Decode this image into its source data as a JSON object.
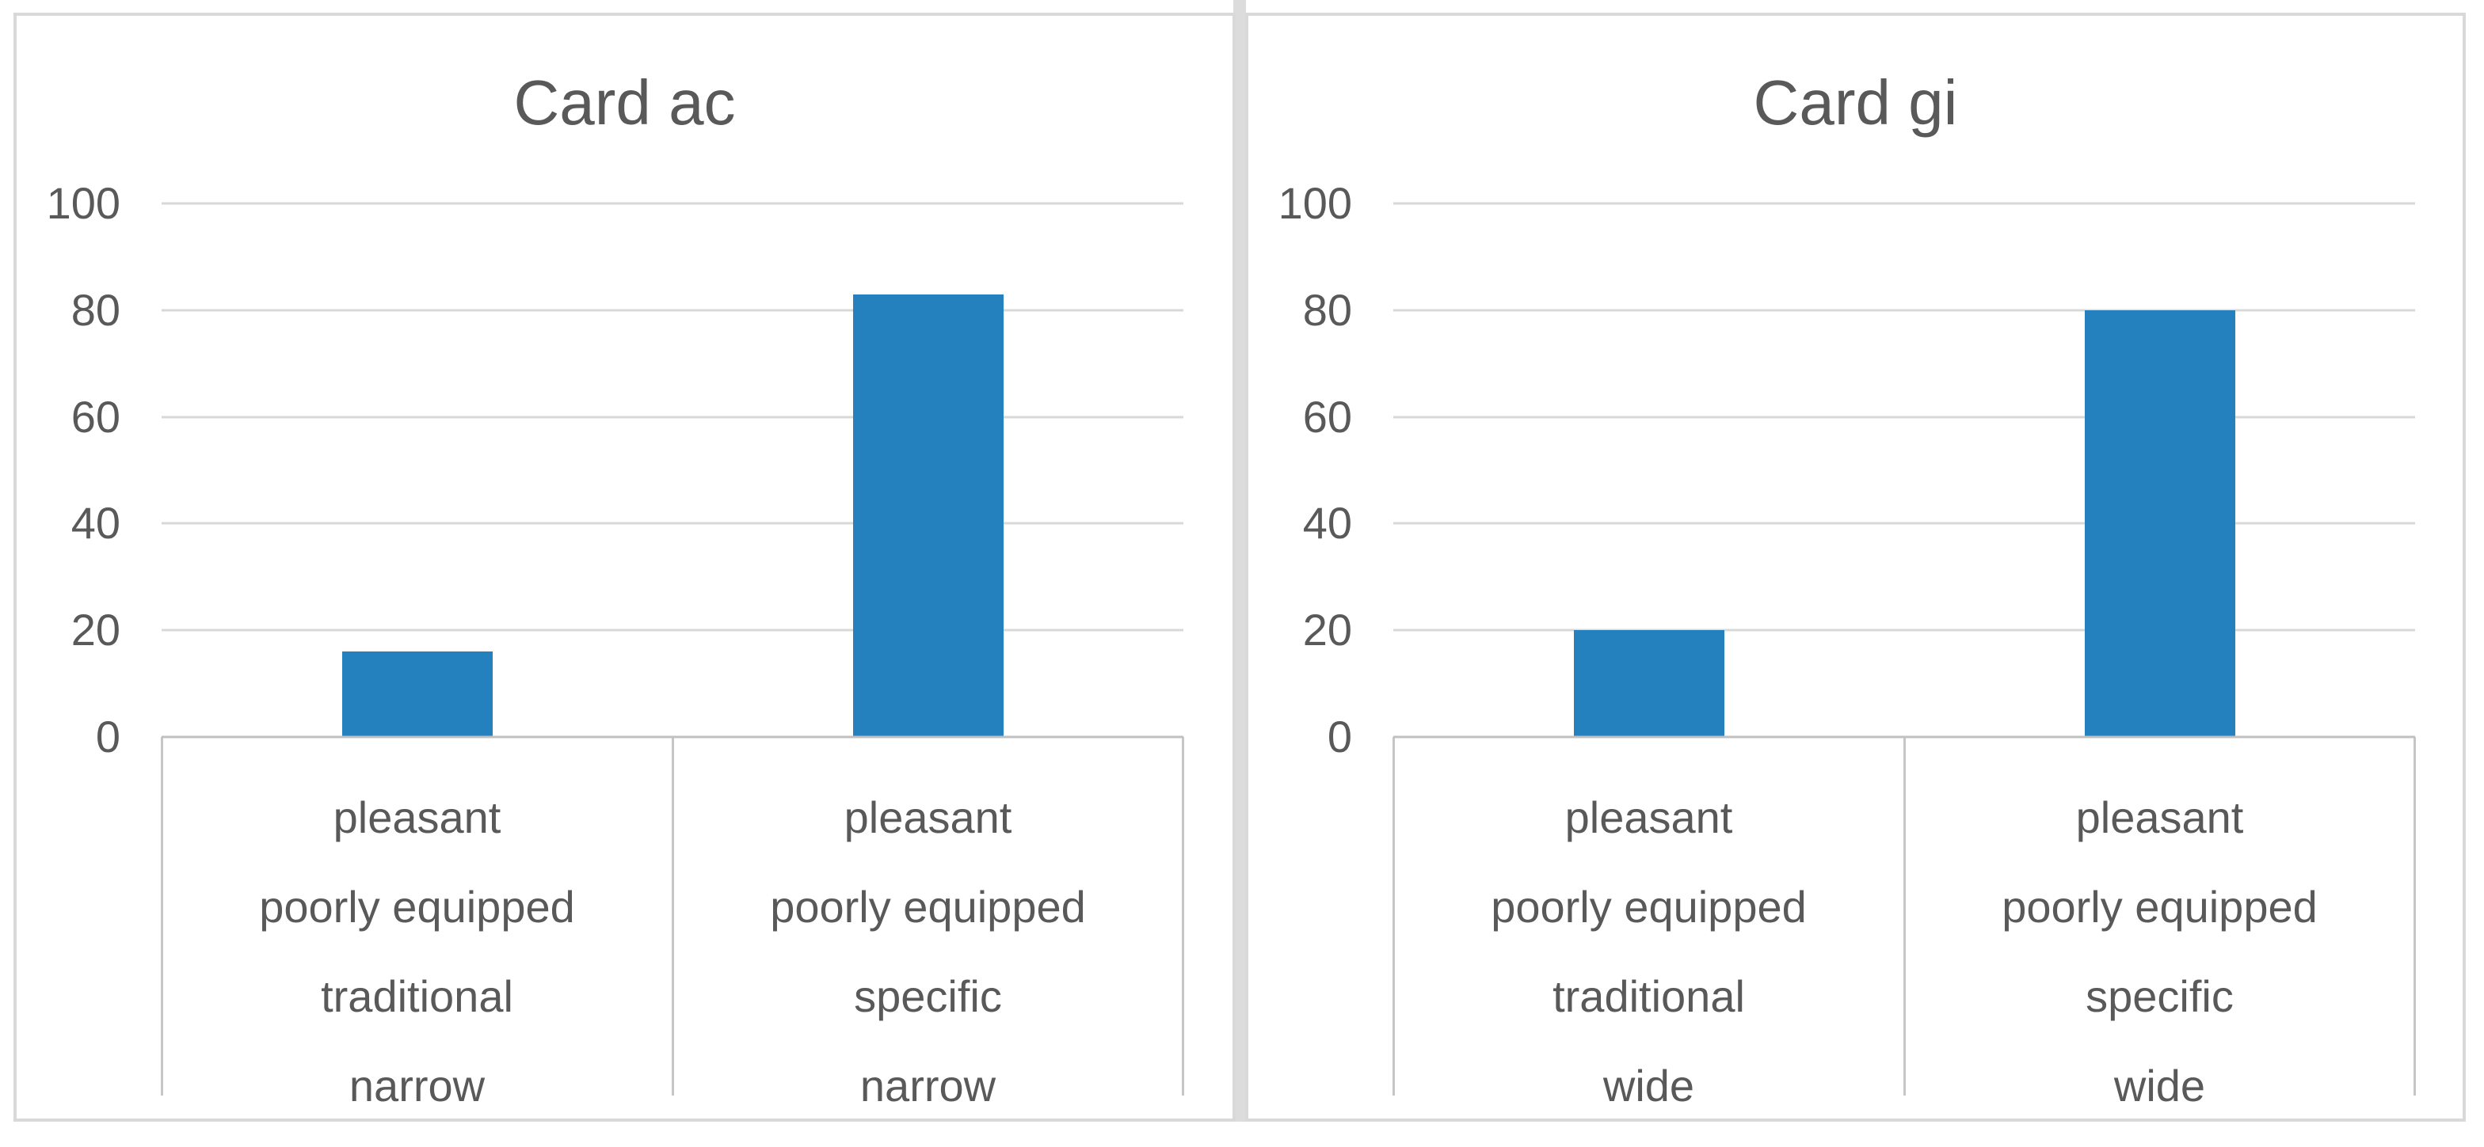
{
  "figure": {
    "background": "#ffffff",
    "panel_border_color": "#d9d9d9",
    "divider_color": "#dcdcdc",
    "gridline_color": "#d8d8d8",
    "axis_line_color": "#c0c0c0",
    "category_border_color": "#c6c6c6",
    "text_color": "#595959",
    "bar_color": "#2581BE"
  },
  "charts": [
    {
      "title": "Card ac",
      "yticks": [
        "100",
        "80",
        "60",
        "40",
        "20",
        "0"
      ],
      "bars": [
        {
          "value": 16,
          "label_lines": [
            "pleasant",
            "poorly equipped",
            "traditional",
            "narrow"
          ]
        },
        {
          "value": 83,
          "label_lines": [
            "pleasant",
            "poorly equipped",
            "specific",
            "narrow"
          ]
        }
      ]
    },
    {
      "title": "Card gi",
      "yticks": [
        "100",
        "80",
        "60",
        "40",
        "20",
        "0"
      ],
      "bars": [
        {
          "value": 20,
          "label_lines": [
            "pleasant",
            "poorly equipped",
            "traditional",
            "wide"
          ]
        },
        {
          "value": 80,
          "label_lines": [
            "pleasant",
            "poorly equipped",
            "specific",
            "wide"
          ]
        }
      ]
    }
  ],
  "chart_data": [
    {
      "type": "bar",
      "title": "Card ac",
      "categories": [
        "pleasant | poorly equipped | traditional | narrow",
        "pleasant | poorly equipped | specific | narrow"
      ],
      "values": [
        16,
        83
      ],
      "xlabel": "",
      "ylabel": "",
      "ylim": [
        0,
        100
      ],
      "yticks": [
        0,
        20,
        40,
        60,
        80,
        100
      ],
      "grid": true,
      "legend": false,
      "bar_color": "#2581BE"
    },
    {
      "type": "bar",
      "title": "Card gi",
      "categories": [
        "pleasant | poorly equipped | traditional | wide",
        "pleasant | poorly equipped | specific | wide"
      ],
      "values": [
        20,
        80
      ],
      "xlabel": "",
      "ylabel": "",
      "ylim": [
        0,
        100
      ],
      "yticks": [
        0,
        20,
        40,
        60,
        80,
        100
      ],
      "grid": true,
      "legend": false,
      "bar_color": "#2581BE"
    }
  ]
}
